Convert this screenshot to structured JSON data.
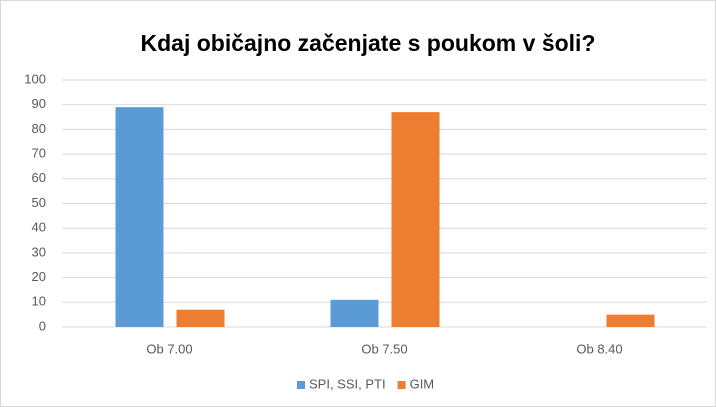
{
  "chart_data": {
    "type": "bar",
    "title": "Kdaj običajno začenjate s poukom v šoli?",
    "categories": [
      "Ob 7.00",
      "Ob 7.50",
      "Ob 8.40"
    ],
    "series": [
      {
        "name": "SPI, SSI, PTI",
        "color": "#5b9bd5",
        "values": [
          89,
          11,
          0
        ]
      },
      {
        "name": "GIM",
        "color": "#ed7d31",
        "values": [
          7,
          87,
          5
        ]
      }
    ],
    "ylim": [
      0,
      100
    ],
    "yticks": [
      0,
      10,
      20,
      30,
      40,
      50,
      60,
      70,
      80,
      90,
      100
    ],
    "grid": true,
    "legend": "bottom"
  }
}
